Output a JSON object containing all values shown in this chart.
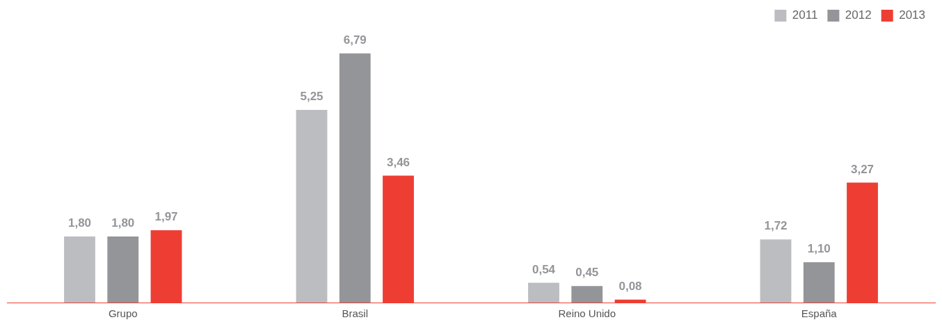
{
  "chart_data": {
    "type": "bar",
    "categories": [
      "Grupo",
      "Brasil",
      "Reino Unido",
      "España"
    ],
    "series": [
      {
        "name": "2011",
        "color": "#bcbdc0",
        "values": [
          1.8,
          5.25,
          0.54,
          1.72
        ],
        "value_labels": [
          "1,80",
          "5,25",
          "0,54",
          "1,72"
        ]
      },
      {
        "name": "2012",
        "color": "#939598",
        "values": [
          1.8,
          6.79,
          0.45,
          1.1
        ],
        "value_labels": [
          "1,80",
          "6,79",
          "0,45",
          "1,10"
        ]
      },
      {
        "name": "2013",
        "color": "#ee3e34",
        "values": [
          1.97,
          3.46,
          0.08,
          3.27
        ],
        "value_labels": [
          "1,97",
          "3,46",
          "0,08",
          "3,27"
        ]
      }
    ],
    "legend": "top right",
    "grid": false
  }
}
